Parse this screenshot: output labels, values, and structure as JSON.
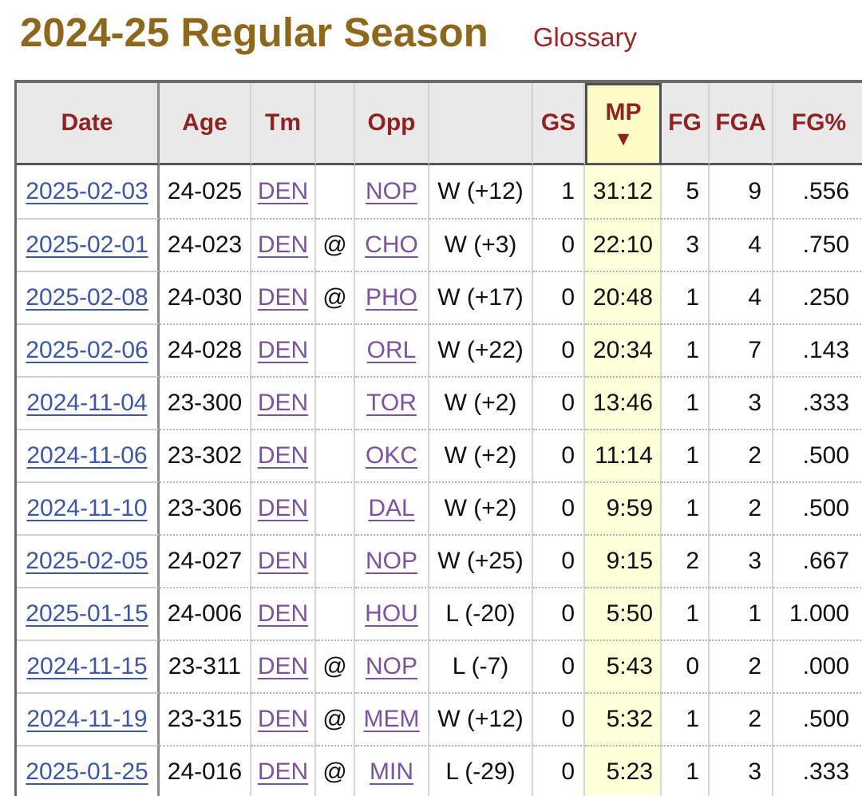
{
  "page": {
    "title": "2024-25 Regular Season",
    "glossary_label": "Glossary"
  },
  "colors": {
    "title": "#8d681c",
    "glossary_link": "#9c2726",
    "header_text": "#8f2322",
    "header_bg": "#e9e9e9",
    "sorted_header_bg": "#fdfcc6",
    "sorted_cell_bg": "#feffd8",
    "date_link": "#3c57a7",
    "team_link": "#7e50a1",
    "body_text": "#0f0f0f"
  },
  "table": {
    "sort_icon": "▼",
    "sorted_by": "mp",
    "sort_direction": "descending",
    "columns": [
      {
        "key": "date",
        "label": "Date",
        "type": "date-link"
      },
      {
        "key": "age",
        "label": "Age",
        "type": "text"
      },
      {
        "key": "tm",
        "label": "Tm",
        "type": "team-link"
      },
      {
        "key": "at",
        "label": "",
        "type": "text"
      },
      {
        "key": "opp",
        "label": "Opp",
        "type": "team-link"
      },
      {
        "key": "result",
        "label": "",
        "type": "text"
      },
      {
        "key": "gs",
        "label": "GS",
        "type": "text"
      },
      {
        "key": "mp",
        "label": "MP",
        "type": "text",
        "sorted": true
      },
      {
        "key": "fg",
        "label": "FG",
        "type": "text"
      },
      {
        "key": "fga",
        "label": "FGA",
        "type": "text"
      },
      {
        "key": "fgpct",
        "label": "FG%",
        "type": "text"
      }
    ],
    "rows": [
      {
        "date": "2025-02-03",
        "age": "24-025",
        "tm": "DEN",
        "at": "",
        "opp": "NOP",
        "result": "W (+12)",
        "gs": "1",
        "mp": "31:12",
        "fg": "5",
        "fga": "9",
        "fgpct": ".556"
      },
      {
        "date": "2025-02-01",
        "age": "24-023",
        "tm": "DEN",
        "at": "@",
        "opp": "CHO",
        "result": "W (+3)",
        "gs": "0",
        "mp": "22:10",
        "fg": "3",
        "fga": "4",
        "fgpct": ".750"
      },
      {
        "date": "2025-02-08",
        "age": "24-030",
        "tm": "DEN",
        "at": "@",
        "opp": "PHO",
        "result": "W (+17)",
        "gs": "0",
        "mp": "20:48",
        "fg": "1",
        "fga": "4",
        "fgpct": ".250"
      },
      {
        "date": "2025-02-06",
        "age": "24-028",
        "tm": "DEN",
        "at": "",
        "opp": "ORL",
        "result": "W (+22)",
        "gs": "0",
        "mp": "20:34",
        "fg": "1",
        "fga": "7",
        "fgpct": ".143"
      },
      {
        "date": "2024-11-04",
        "age": "23-300",
        "tm": "DEN",
        "at": "",
        "opp": "TOR",
        "result": "W (+2)",
        "gs": "0",
        "mp": "13:46",
        "fg": "1",
        "fga": "3",
        "fgpct": ".333"
      },
      {
        "date": "2024-11-06",
        "age": "23-302",
        "tm": "DEN",
        "at": "",
        "opp": "OKC",
        "result": "W (+2)",
        "gs": "0",
        "mp": "11:14",
        "fg": "1",
        "fga": "2",
        "fgpct": ".500"
      },
      {
        "date": "2024-11-10",
        "age": "23-306",
        "tm": "DEN",
        "at": "",
        "opp": "DAL",
        "result": "W (+2)",
        "gs": "0",
        "mp": "9:59",
        "fg": "1",
        "fga": "2",
        "fgpct": ".500"
      },
      {
        "date": "2025-02-05",
        "age": "24-027",
        "tm": "DEN",
        "at": "",
        "opp": "NOP",
        "result": "W (+25)",
        "gs": "0",
        "mp": "9:15",
        "fg": "2",
        "fga": "3",
        "fgpct": ".667"
      },
      {
        "date": "2025-01-15",
        "age": "24-006",
        "tm": "DEN",
        "at": "",
        "opp": "HOU",
        "result": "L (-20)",
        "gs": "0",
        "mp": "5:50",
        "fg": "1",
        "fga": "1",
        "fgpct": "1.000"
      },
      {
        "date": "2024-11-15",
        "age": "23-311",
        "tm": "DEN",
        "at": "@",
        "opp": "NOP",
        "result": "L (-7)",
        "gs": "0",
        "mp": "5:43",
        "fg": "0",
        "fga": "2",
        "fgpct": ".000"
      },
      {
        "date": "2024-11-19",
        "age": "23-315",
        "tm": "DEN",
        "at": "@",
        "opp": "MEM",
        "result": "W (+12)",
        "gs": "0",
        "mp": "5:32",
        "fg": "1",
        "fga": "2",
        "fgpct": ".500"
      },
      {
        "date": "2025-01-25",
        "age": "24-016",
        "tm": "DEN",
        "at": "@",
        "opp": "MIN",
        "result": "L (-29)",
        "gs": "0",
        "mp": "5:23",
        "fg": "1",
        "fga": "3",
        "fgpct": ".333"
      }
    ]
  }
}
